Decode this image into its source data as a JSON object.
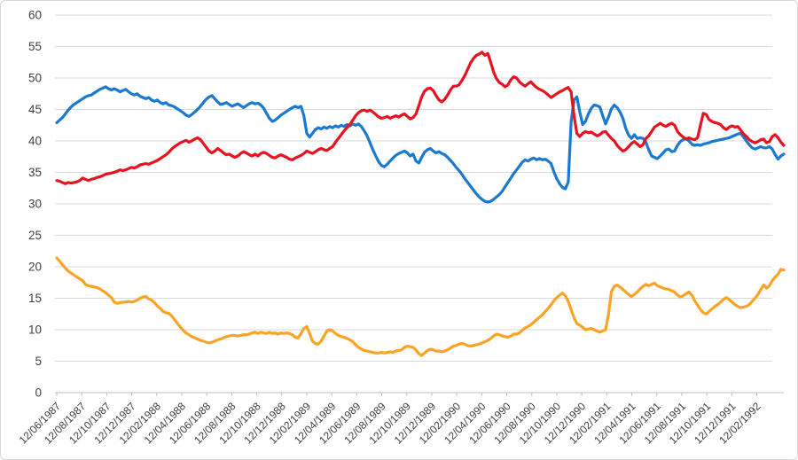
{
  "colors": {
    "background": "#ffffff",
    "border": "#d8d8d8",
    "gridline": "#d9d9d9",
    "axis_line": "#bfbfbf",
    "tick_mark": "#bfbfbf",
    "label_text": "#404040",
    "series_blue": "#1b79d1",
    "series_red": "#e8131f",
    "series_orange": "#fba324"
  },
  "chart_data": {
    "type": "line",
    "title": "",
    "xlabel": "",
    "ylabel": "",
    "legend": "none",
    "grid": "horizontal-only",
    "ylim": [
      0,
      60
    ],
    "y_tick_labels": [
      "0",
      "5",
      "10",
      "15",
      "20",
      "25",
      "30",
      "35",
      "40",
      "45",
      "50",
      "55",
      "60"
    ],
    "y_tick_values": [
      0,
      5,
      10,
      15,
      20,
      25,
      30,
      35,
      40,
      45,
      50,
      55,
      60
    ],
    "x_tick_labels": [
      "12/06/1987",
      "12/08/1987",
      "12/10/1987",
      "12/12/1987",
      "12/02/1988",
      "12/04/1988",
      "12/06/1988",
      "12/08/1988",
      "12/10/1988",
      "12/12/1988",
      "12/02/1989",
      "12/04/1989",
      "12/06/1989",
      "12/08/1989",
      "12/10/1989",
      "12/12/1989",
      "12/02/1990",
      "12/04/1990",
      "12/06/1990",
      "12/08/1990",
      "12/10/1990",
      "12/12/1990",
      "12/02/1991",
      "12/04/1991",
      "12/06/1991",
      "12/08/1991",
      "12/10/1991",
      "12/12/1991",
      "12/02/1992"
    ],
    "x_unit": "weeks since 12/06/1987",
    "x_weeks_per_label_interval": 8.7,
    "x_range_weeks": [
      0,
      253
    ],
    "series": [
      {
        "name": "blue-series",
        "color_key": "series_blue",
        "values": [
          42.9,
          43.3,
          43.7,
          44.3,
          44.9,
          45.4,
          45.8,
          46.1,
          46.4,
          46.7,
          47.0,
          47.2,
          47.3,
          47.6,
          47.9,
          48.2,
          48.4,
          48.6,
          48.3,
          48.1,
          48.3,
          48.1,
          47.8,
          48.0,
          48.2,
          47.8,
          47.5,
          47.3,
          47.5,
          47.1,
          46.9,
          46.7,
          46.9,
          46.5,
          46.3,
          46.5,
          46.1,
          45.9,
          46.1,
          45.7,
          45.6,
          45.4,
          45.1,
          44.8,
          44.5,
          44.1,
          43.9,
          44.2,
          44.6,
          45.0,
          45.5,
          46.1,
          46.6,
          47.0,
          47.2,
          46.7,
          46.2,
          45.8,
          45.9,
          46.1,
          45.8,
          45.5,
          45.7,
          45.9,
          45.6,
          45.3,
          45.6,
          45.9,
          46.1,
          45.9,
          46.0,
          45.7,
          45.2,
          44.4,
          43.6,
          43.1,
          43.3,
          43.7,
          44.1,
          44.4,
          44.7,
          45.0,
          45.3,
          45.5,
          45.3,
          45.5,
          44.0,
          41.2,
          40.6,
          41.2,
          41.8,
          42.1,
          41.9,
          42.2,
          42.0,
          42.3,
          42.1,
          42.4,
          42.2,
          42.5,
          42.3,
          42.6,
          42.4,
          42.7,
          42.5,
          42.7,
          42.3,
          41.6,
          40.8,
          39.7,
          38.6,
          37.6,
          36.7,
          36.1,
          35.9,
          36.3,
          36.8,
          37.3,
          37.7,
          38.0,
          38.2,
          38.4,
          38.1,
          37.6,
          37.9,
          36.8,
          36.5,
          37.4,
          38.2,
          38.6,
          38.8,
          38.4,
          38.1,
          38.3,
          38.0,
          37.8,
          37.4,
          36.9,
          36.4,
          35.8,
          35.3,
          34.7,
          34.0,
          33.4,
          32.8,
          32.2,
          31.6,
          31.1,
          30.7,
          30.4,
          30.3,
          30.4,
          30.7,
          31.1,
          31.5,
          32.0,
          32.7,
          33.4,
          34.1,
          34.8,
          35.4,
          36.0,
          36.6,
          37.0,
          36.8,
          37.1,
          37.3,
          37.0,
          37.2,
          37.0,
          37.1,
          36.8,
          36.4,
          35.1,
          34.0,
          33.2,
          32.6,
          32.4,
          33.5,
          43.0,
          46.5,
          47.0,
          44.6,
          42.6,
          43.1,
          44.3,
          45.2,
          45.7,
          45.6,
          45.4,
          44.0,
          42.7,
          43.8,
          45.1,
          45.7,
          45.3,
          44.6,
          43.6,
          42.0,
          40.9,
          40.4,
          41.0,
          40.4,
          40.5,
          40.4,
          39.8,
          38.6,
          37.6,
          37.4,
          37.2,
          37.6,
          38.1,
          38.6,
          38.7,
          38.3,
          38.4,
          39.3,
          39.9,
          40.2,
          40.4,
          40.0,
          39.5,
          39.3,
          39.4,
          39.3,
          39.5,
          39.6,
          39.7,
          39.9,
          40.0,
          40.1,
          40.2,
          40.3,
          40.4,
          40.5,
          40.7,
          40.9,
          41.1,
          41.2,
          40.6,
          40.0,
          39.4,
          38.9,
          38.7,
          38.9,
          39.1,
          38.9,
          38.9,
          39.1,
          38.7,
          37.8,
          37.1,
          37.6,
          37.9
        ]
      },
      {
        "name": "red-series",
        "color_key": "series_red",
        "values": [
          33.7,
          33.6,
          33.4,
          33.2,
          33.4,
          33.3,
          33.4,
          33.5,
          33.7,
          34.1,
          33.9,
          33.7,
          33.9,
          34.0,
          34.2,
          34.3,
          34.5,
          34.7,
          34.8,
          34.9,
          35.0,
          35.2,
          35.4,
          35.3,
          35.4,
          35.6,
          35.8,
          35.7,
          35.9,
          36.2,
          36.3,
          36.4,
          36.3,
          36.5,
          36.7,
          36.9,
          37.2,
          37.5,
          37.8,
          38.2,
          38.7,
          39.1,
          39.4,
          39.7,
          39.9,
          40.1,
          39.8,
          40.0,
          40.3,
          40.5,
          40.2,
          39.6,
          39.0,
          38.4,
          38.1,
          38.4,
          38.8,
          38.5,
          38.1,
          37.8,
          37.9,
          37.6,
          37.4,
          37.6,
          38.0,
          38.3,
          38.1,
          37.8,
          37.6,
          37.9,
          37.6,
          38.0,
          38.2,
          38.0,
          37.7,
          37.4,
          37.3,
          37.6,
          37.8,
          37.6,
          37.4,
          37.1,
          37.0,
          37.3,
          37.5,
          37.7,
          38.0,
          38.4,
          38.2,
          38.0,
          38.3,
          38.6,
          38.8,
          38.6,
          38.5,
          38.8,
          39.1,
          39.8,
          40.4,
          41.0,
          41.6,
          42.1,
          42.6,
          43.3,
          44.0,
          44.5,
          44.8,
          44.9,
          44.7,
          44.9,
          44.6,
          44.2,
          43.8,
          43.6,
          43.7,
          43.9,
          43.6,
          43.8,
          44.0,
          43.8,
          44.1,
          44.3,
          43.9,
          43.5,
          43.7,
          44.3,
          45.6,
          47.0,
          47.9,
          48.3,
          48.4,
          48.0,
          47.2,
          46.5,
          46.2,
          46.6,
          47.3,
          48.1,
          48.7,
          48.7,
          48.9,
          49.6,
          50.4,
          51.4,
          52.4,
          53.1,
          53.6,
          53.8,
          54.1,
          53.6,
          53.9,
          52.5,
          51.0,
          49.9,
          49.3,
          49.0,
          48.6,
          48.9,
          49.7,
          50.2,
          50.0,
          49.4,
          49.0,
          48.7,
          49.1,
          49.4,
          48.9,
          48.5,
          48.2,
          48.0,
          47.7,
          47.3,
          46.9,
          47.2,
          47.5,
          47.8,
          48.0,
          48.3,
          48.5,
          47.8,
          44.0,
          41.2,
          40.7,
          41.2,
          41.5,
          41.3,
          41.4,
          41.1,
          40.8,
          41.0,
          41.4,
          41.5,
          40.9,
          40.4,
          40.0,
          39.3,
          38.8,
          38.4,
          38.6,
          39.1,
          39.6,
          39.9,
          39.5,
          39.1,
          39.4,
          40.4,
          40.8,
          41.5,
          42.2,
          42.5,
          42.8,
          42.5,
          42.3,
          42.6,
          42.8,
          42.5,
          41.5,
          41.0,
          40.6,
          40.3,
          40.5,
          40.3,
          40.2,
          40.5,
          42.5,
          44.4,
          44.2,
          43.4,
          43.1,
          42.9,
          42.8,
          42.6,
          42.1,
          41.8,
          42.2,
          42.4,
          42.2,
          42.3,
          41.7,
          41.1,
          40.7,
          40.2,
          39.9,
          39.7,
          39.9,
          40.2,
          40.3,
          39.7,
          39.9,
          40.7,
          41.0,
          40.5,
          39.8,
          39.3
        ]
      },
      {
        "name": "orange-series",
        "color_key": "series_orange",
        "values": [
          21.4,
          20.9,
          20.3,
          19.8,
          19.3,
          19.0,
          18.7,
          18.4,
          18.1,
          17.8,
          17.2,
          17.0,
          16.9,
          16.8,
          16.7,
          16.5,
          16.2,
          15.9,
          15.5,
          15.1,
          14.4,
          14.2,
          14.3,
          14.4,
          14.4,
          14.5,
          14.4,
          14.5,
          14.7,
          15.0,
          15.2,
          15.3,
          14.9,
          14.7,
          14.3,
          13.8,
          13.4,
          12.9,
          12.7,
          12.6,
          12.2,
          11.6,
          11.0,
          10.4,
          9.9,
          9.5,
          9.2,
          8.9,
          8.7,
          8.5,
          8.3,
          8.2,
          8.0,
          7.9,
          8.0,
          8.2,
          8.4,
          8.5,
          8.7,
          8.9,
          9.0,
          9.1,
          9.1,
          9.0,
          9.1,
          9.2,
          9.2,
          9.3,
          9.5,
          9.6,
          9.4,
          9.6,
          9.5,
          9.4,
          9.6,
          9.4,
          9.5,
          9.3,
          9.5,
          9.4,
          9.5,
          9.4,
          9.2,
          8.8,
          8.7,
          9.4,
          10.2,
          10.5,
          9.4,
          8.2,
          7.8,
          7.7,
          8.2,
          9.0,
          9.8,
          10.0,
          9.8,
          9.4,
          9.1,
          8.9,
          8.8,
          8.6,
          8.4,
          8.1,
          7.6,
          7.2,
          6.9,
          6.7,
          6.6,
          6.5,
          6.4,
          6.3,
          6.3,
          6.4,
          6.3,
          6.4,
          6.5,
          6.4,
          6.6,
          6.7,
          6.8,
          7.2,
          7.4,
          7.3,
          7.2,
          6.8,
          6.2,
          5.9,
          6.3,
          6.7,
          6.9,
          6.8,
          6.6,
          6.6,
          6.5,
          6.6,
          6.8,
          7.1,
          7.4,
          7.5,
          7.7,
          7.8,
          7.7,
          7.5,
          7.4,
          7.5,
          7.6,
          7.7,
          7.9,
          8.1,
          8.3,
          8.6,
          9.0,
          9.3,
          9.2,
          9.0,
          8.9,
          8.8,
          9.0,
          9.3,
          9.3,
          9.5,
          9.9,
          10.3,
          10.5,
          10.8,
          11.2,
          11.6,
          12.0,
          12.4,
          12.9,
          13.4,
          14.0,
          14.6,
          15.1,
          15.5,
          15.8,
          15.4,
          14.5,
          13.2,
          11.9,
          11.0,
          10.7,
          10.4,
          10.0,
          10.1,
          10.2,
          10.0,
          9.8,
          9.6,
          9.8,
          10.0,
          12.5,
          16.0,
          16.9,
          17.1,
          16.8,
          16.4,
          16.0,
          15.6,
          15.3,
          15.6,
          16.0,
          16.5,
          16.9,
          17.2,
          17.0,
          17.2,
          17.4,
          17.0,
          16.8,
          16.6,
          16.5,
          16.4,
          16.2,
          16.0,
          15.5,
          15.2,
          15.4,
          15.7,
          16.0,
          15.5,
          14.6,
          13.9,
          13.2,
          12.7,
          12.5,
          12.9,
          13.3,
          13.7,
          14.0,
          14.4,
          14.8,
          15.1,
          14.8,
          14.4,
          14.0,
          13.7,
          13.5,
          13.6,
          13.7,
          14.0,
          14.5,
          15.0,
          15.6,
          16.4,
          17.1,
          16.6,
          17.0,
          17.8,
          18.4,
          18.8,
          19.6,
          19.5
        ]
      }
    ]
  }
}
